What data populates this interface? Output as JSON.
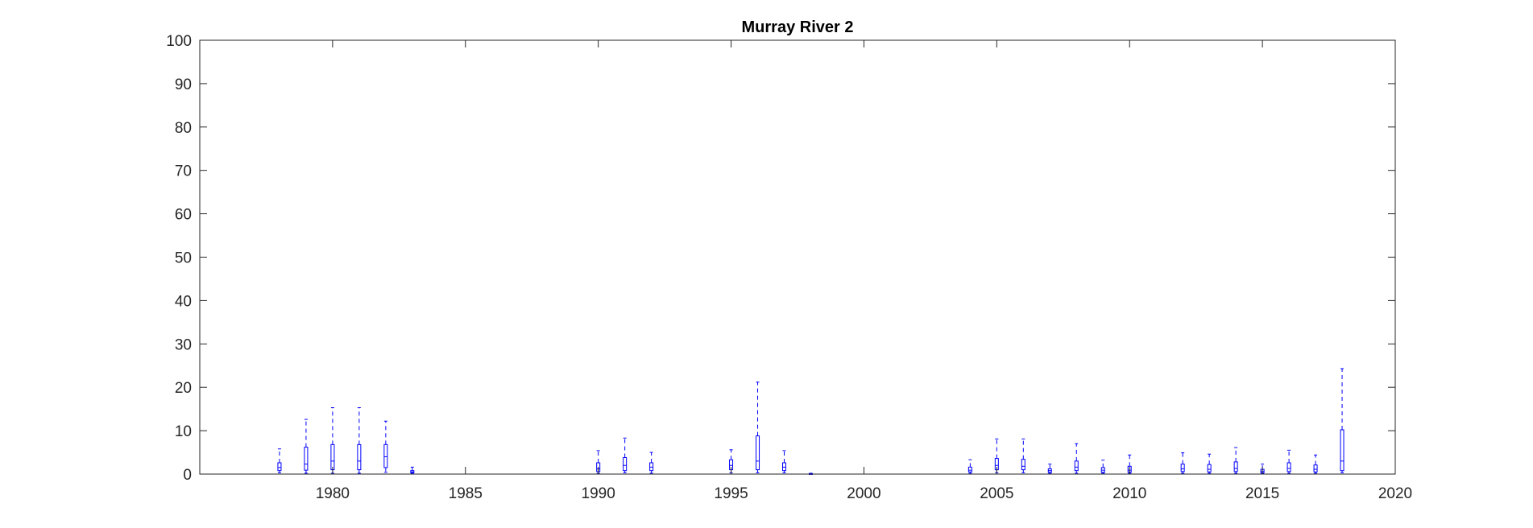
{
  "chart_data": {
    "type": "boxplot",
    "title": "Murray River 2",
    "xlabel": "",
    "ylabel": "",
    "xlim": [
      1975,
      2020
    ],
    "ylim": [
      0,
      100
    ],
    "xticks": [
      1980,
      1985,
      1990,
      1995,
      2000,
      2005,
      2010,
      2015,
      2020
    ],
    "yticks": [
      0,
      10,
      20,
      30,
      40,
      50,
      60,
      70,
      80,
      90,
      100
    ],
    "grid": false,
    "box_color": "#0000ff",
    "axis_color": "#262626",
    "boxes": [
      {
        "x": 1978,
        "low": 0.3,
        "q1": 0.8,
        "median": 1.5,
        "q3": 2.6,
        "high": 5.8
      },
      {
        "x": 1979,
        "low": 0.2,
        "q1": 0.9,
        "median": 2.3,
        "q3": 6.2,
        "high": 12.6
      },
      {
        "x": 1980,
        "low": 0.2,
        "q1": 1.0,
        "median": 3.0,
        "q3": 6.8,
        "high": 15.3
      },
      {
        "x": 1981,
        "low": 0.2,
        "q1": 1.0,
        "median": 3.0,
        "q3": 6.8,
        "high": 15.3
      },
      {
        "x": 1982,
        "low": 0.4,
        "q1": 1.5,
        "median": 4.0,
        "q3": 6.8,
        "high": 12.2
      },
      {
        "x": 1983,
        "low": 0.1,
        "q1": 0.3,
        "median": 0.5,
        "q3": 0.8,
        "high": 1.6
      },
      {
        "x": 1990,
        "low": 0.2,
        "q1": 0.6,
        "median": 1.2,
        "q3": 2.6,
        "high": 5.4
      },
      {
        "x": 1991,
        "low": 0.3,
        "q1": 0.8,
        "median": 2.0,
        "q3": 3.8,
        "high": 8.3
      },
      {
        "x": 1992,
        "low": 0.2,
        "q1": 0.8,
        "median": 1.6,
        "q3": 2.6,
        "high": 5.0
      },
      {
        "x": 1995,
        "low": 0.3,
        "q1": 1.0,
        "median": 2.0,
        "q3": 3.3,
        "high": 5.6
      },
      {
        "x": 1996,
        "low": 0.3,
        "q1": 1.0,
        "median": 3.0,
        "q3": 8.8,
        "high": 21.2
      },
      {
        "x": 1997,
        "low": 0.3,
        "q1": 0.8,
        "median": 1.6,
        "q3": 2.6,
        "high": 5.4
      },
      {
        "x": 1998,
        "low": 0.0,
        "q1": 0.0,
        "median": 0.05,
        "q3": 0.1,
        "high": 0.2
      },
      {
        "x": 2004,
        "low": 0.2,
        "q1": 0.5,
        "median": 0.9,
        "q3": 1.6,
        "high": 3.3
      },
      {
        "x": 2005,
        "low": 0.3,
        "q1": 1.0,
        "median": 2.0,
        "q3": 3.6,
        "high": 8.1
      },
      {
        "x": 2006,
        "low": 0.3,
        "q1": 1.0,
        "median": 1.8,
        "q3": 3.4,
        "high": 8.1
      },
      {
        "x": 2007,
        "low": 0.2,
        "q1": 0.4,
        "median": 0.8,
        "q3": 1.2,
        "high": 2.3
      },
      {
        "x": 2008,
        "low": 0.2,
        "q1": 0.8,
        "median": 1.6,
        "q3": 3.0,
        "high": 7.0
      },
      {
        "x": 2009,
        "low": 0.2,
        "q1": 0.4,
        "median": 0.9,
        "q3": 1.5,
        "high": 3.2
      },
      {
        "x": 2010,
        "low": 0.2,
        "q1": 0.4,
        "median": 0.9,
        "q3": 1.8,
        "high": 4.4
      },
      {
        "x": 2012,
        "low": 0.2,
        "q1": 0.6,
        "median": 1.2,
        "q3": 2.3,
        "high": 4.9
      },
      {
        "x": 2013,
        "low": 0.2,
        "q1": 0.5,
        "median": 1.1,
        "q3": 2.2,
        "high": 4.6
      },
      {
        "x": 2014,
        "low": 0.2,
        "q1": 0.6,
        "median": 1.3,
        "q3": 2.8,
        "high": 6.1
      },
      {
        "x": 2015,
        "low": 0.1,
        "q1": 0.3,
        "median": 0.6,
        "q3": 1.1,
        "high": 2.3
      },
      {
        "x": 2016,
        "low": 0.2,
        "q1": 0.6,
        "median": 1.3,
        "q3": 2.6,
        "high": 5.5
      },
      {
        "x": 2017,
        "low": 0.2,
        "q1": 0.5,
        "median": 1.1,
        "q3": 2.1,
        "high": 4.4
      },
      {
        "x": 2018,
        "low": 0.3,
        "q1": 0.8,
        "median": 3.0,
        "q3": 10.2,
        "high": 24.3
      }
    ]
  }
}
